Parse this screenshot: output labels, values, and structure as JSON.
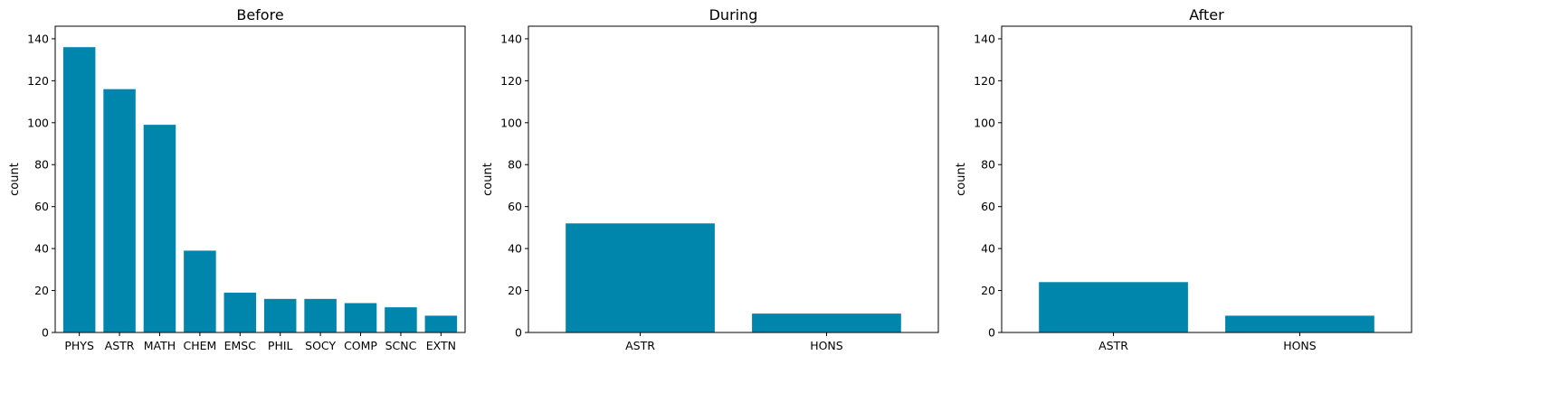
{
  "chart_data": [
    {
      "type": "bar",
      "title": "Before",
      "xlabel": "",
      "ylabel": "count",
      "categories": [
        "PHYS",
        "ASTR",
        "MATH",
        "CHEM",
        "EMSC",
        "PHIL",
        "SOCY",
        "COMP",
        "SCNC",
        "EXTN"
      ],
      "values": [
        136,
        116,
        99,
        39,
        19,
        16,
        16,
        14,
        12,
        8
      ],
      "ylim": [
        0,
        146
      ],
      "yticks": [
        0,
        20,
        40,
        60,
        80,
        100,
        120,
        140
      ],
      "grid": false,
      "color": "#0086ad"
    },
    {
      "type": "bar",
      "title": "During",
      "xlabel": "",
      "ylabel": "count",
      "categories": [
        "ASTR",
        "HONS"
      ],
      "values": [
        52,
        9
      ],
      "ylim": [
        0,
        146
      ],
      "yticks": [
        0,
        20,
        40,
        60,
        80,
        100,
        120,
        140
      ],
      "grid": false,
      "color": "#0086ad"
    },
    {
      "type": "bar",
      "title": "After",
      "xlabel": "",
      "ylabel": "count",
      "categories": [
        "ASTR",
        "HONS"
      ],
      "values": [
        24,
        8
      ],
      "ylim": [
        0,
        146
      ],
      "yticks": [
        0,
        20,
        40,
        60,
        80,
        100,
        120,
        140
      ],
      "grid": false,
      "color": "#0086ad"
    }
  ]
}
